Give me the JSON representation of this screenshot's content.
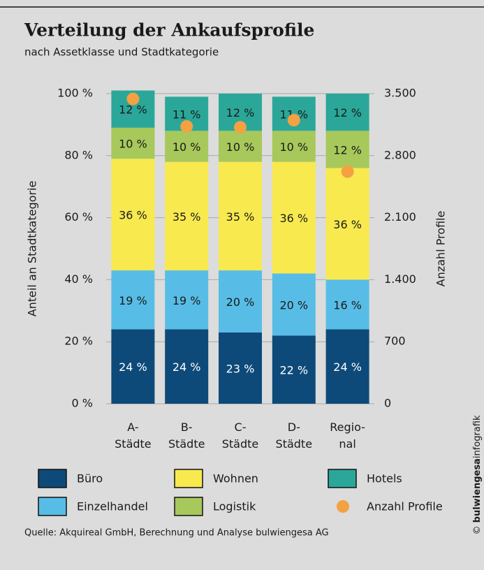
{
  "chart_data": {
    "type": "bar",
    "stacked": true,
    "title": "Verteilung der Ankaufsprofile",
    "subtitle": "nach Assetklasse und Stadtkategorie",
    "y_label": "Anteil an Stadtkategorie",
    "y2_label": "Anzahl Profile",
    "categories": [
      "A-\nStädte",
      "B-\nStädte",
      "C-\nStädte",
      "D-\nStädte",
      "Regio-\nnal"
    ],
    "series": [
      {
        "name": "Büro",
        "color": "#0d4a79",
        "values": [
          24,
          24,
          23,
          22,
          24
        ],
        "value_labels": [
          "24 %",
          "24 %",
          "23 %",
          "22 %",
          "24 %"
        ]
      },
      {
        "name": "Einzelhandel",
        "color": "#58bde6",
        "values": [
          19,
          19,
          20,
          20,
          16
        ],
        "value_labels": [
          "19 %",
          "19 %",
          "20 %",
          "20 %",
          "16 %"
        ]
      },
      {
        "name": "Wohnen",
        "color": "#f8e94f",
        "values": [
          36,
          35,
          35,
          36,
          36
        ],
        "value_labels": [
          "36 %",
          "35 %",
          "35 %",
          "36 %",
          "36 %"
        ]
      },
      {
        "name": "Logistik",
        "color": "#a7c85b",
        "values": [
          10,
          10,
          10,
          10,
          12
        ],
        "value_labels": [
          "10 %",
          "10 %",
          "10 %",
          "10 %",
          "12 %"
        ]
      },
      {
        "name": "Hotels",
        "color": "#2ba799",
        "values": [
          12,
          11,
          12,
          11,
          12
        ],
        "value_labels": [
          "12 %",
          "11 %",
          "12 %",
          "11 %",
          "12 %"
        ]
      },
      {
        "name": "Anzahl Profile",
        "color": "#f4a142",
        "type": "scatter",
        "axis": "y2",
        "values": [
          3440,
          3130,
          3120,
          3200,
          2620
        ]
      }
    ],
    "ylim": [
      0,
      100
    ],
    "yticks": [
      {
        "value": 0,
        "label": "0 %"
      },
      {
        "value": 20,
        "label": "20 %"
      },
      {
        "value": 40,
        "label": "40 %"
      },
      {
        "value": 60,
        "label": "60 %"
      },
      {
        "value": 80,
        "label": "80 %"
      },
      {
        "value": 100,
        "label": "100 %"
      }
    ],
    "y2lim": [
      0,
      3500
    ],
    "y2ticks": [
      0,
      700,
      {
        "value": 1400,
        "label": "1.400"
      },
      {
        "value": 2100,
        "label": "2.100"
      },
      {
        "value": 2800,
        "label": "2.800"
      },
      {
        "value": 3500,
        "label": "3.500"
      }
    ],
    "grid": true,
    "source": "Quelle: Akquireal GmbH, Berechnung und Analyse bulwiengesa AG",
    "credit": {
      "symbol": "©",
      "brand": "bulwiengesa",
      "suffix": "infografik"
    }
  }
}
